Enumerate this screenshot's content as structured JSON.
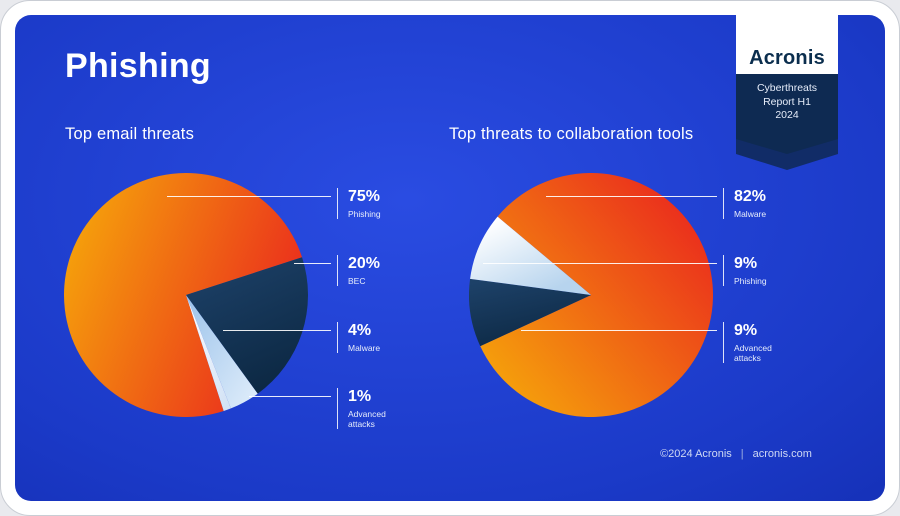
{
  "page": {
    "title": "Phishing"
  },
  "brand": {
    "name": "Acronis",
    "report_lines": [
      "Cyberthreats",
      "Report H1",
      "2024"
    ]
  },
  "footer": {
    "copyright": "©2024 Acronis",
    "divider": "|",
    "site": "acronis.com"
  },
  "palette": {
    "panel_center": "#2a4ce2",
    "panel_edge": "#0c219b",
    "ribbon_navy": "#0e2a52",
    "ribbon_back": "#112c67",
    "warm_start": "#f6a80a",
    "warm_end": "#ea2a1d",
    "navy_start": "#1d4168",
    "navy_end": "#0c2843",
    "ice_start": "#9cc3ea",
    "ice_end": "#e1eefb",
    "pale_start": "#ffffff",
    "pale_end": "#cfe0f5",
    "snow_start": "#ffffff",
    "snow_end": "#b7d4ee",
    "callout_line": "#ffffff"
  },
  "chart_data": [
    {
      "type": "pie",
      "title": "Top email threats",
      "legend_position": "right",
      "start_angle": 162,
      "draw_order": [
        0,
        1,
        2,
        3
      ],
      "slices": [
        {
          "label": "Phishing",
          "value": 75,
          "pct": "75%",
          "fill": "warm"
        },
        {
          "label": "BEC",
          "value": 20,
          "pct": "20%",
          "fill": "navy"
        },
        {
          "label": "Malware",
          "value": 4,
          "pct": "4%",
          "fill": "ice"
        },
        {
          "label": "Advanced attacks",
          "value": 1,
          "pct": "1%",
          "fill": "pale"
        }
      ]
    },
    {
      "type": "pie",
      "title": "Top threats to collaboration tools",
      "legend_position": "right",
      "start_angle": 310,
      "draw_order": [
        0,
        2,
        1
      ],
      "slices": [
        {
          "label": "Malware",
          "value": 82,
          "pct": "82%",
          "fill": "warm"
        },
        {
          "label": "Phishing",
          "value": 9,
          "pct": "9%",
          "fill": "snow"
        },
        {
          "label": "Advanced attacks",
          "value": 9,
          "pct": "9%",
          "fill": "navy"
        }
      ]
    }
  ]
}
